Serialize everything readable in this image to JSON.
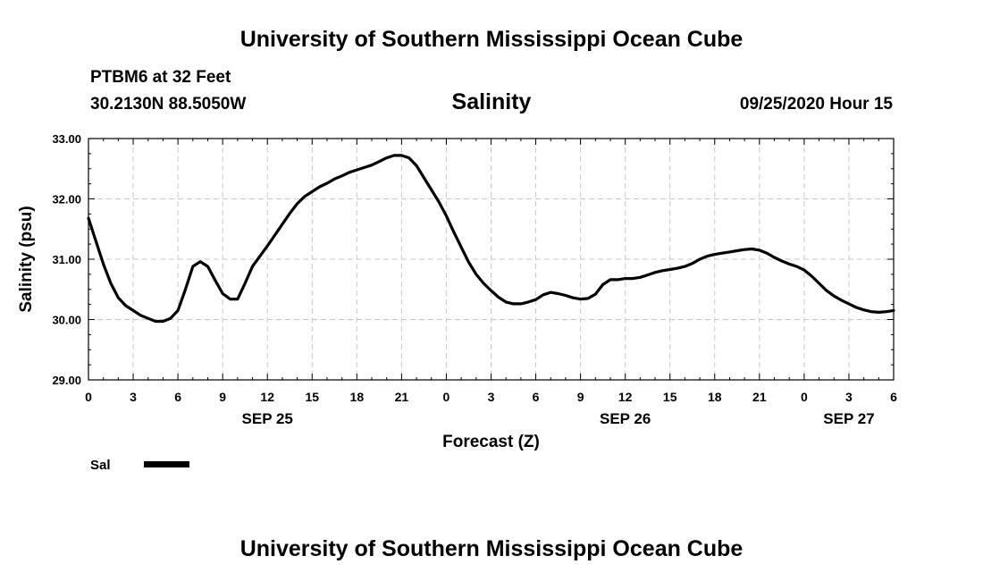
{
  "header": {
    "title": "University of Southern Mississippi Ocean Cube",
    "station": "PTBM6 at 32 Feet",
    "coords": "30.2130N 88.5050W",
    "variable": "Salinity",
    "datetime": "09/25/2020 Hour 15"
  },
  "footer": {
    "title": "University of Southern Mississippi Ocean Cube"
  },
  "chart_data": {
    "type": "line",
    "title": "Salinity",
    "xlabel": "Forecast (Z)",
    "ylabel": "Salinity (psu)",
    "xlim": [
      0,
      54
    ],
    "ylim": [
      29.0,
      33.0
    ],
    "grid": true,
    "x_tick_labels": [
      "0",
      "3",
      "6",
      "9",
      "12",
      "15",
      "18",
      "21",
      "0",
      "3",
      "6",
      "9",
      "12",
      "15",
      "18",
      "21",
      "0",
      "3",
      "6"
    ],
    "y_tick_values": [
      29.0,
      30.0,
      31.0,
      32.0,
      33.0
    ],
    "y_tick_labels": [
      "29.00",
      "30.00",
      "31.00",
      "32.00",
      "33.00"
    ],
    "date_labels": [
      {
        "label": "SEP 25",
        "x": 12
      },
      {
        "label": "SEP 26",
        "x": 36
      },
      {
        "label": "SEP 27",
        "x": 51
      }
    ],
    "legend": {
      "position": "bottom-left",
      "label": "Sal"
    },
    "series": [
      {
        "name": "Sal",
        "color": "#000000",
        "x": [
          0,
          0.5,
          1,
          1.5,
          2,
          2.5,
          3,
          3.5,
          4,
          4.5,
          5,
          5.5,
          6,
          6.5,
          7,
          7.5,
          8,
          8.5,
          9,
          9.5,
          10,
          10.5,
          11,
          11.5,
          12,
          12.5,
          13,
          13.5,
          14,
          14.5,
          15,
          15.5,
          16,
          16.5,
          17,
          17.5,
          18,
          18.5,
          19,
          19.5,
          20,
          20.5,
          21,
          21.5,
          22,
          22.5,
          23,
          23.5,
          24,
          24.5,
          25,
          25.5,
          26,
          26.5,
          27,
          27.5,
          28,
          28.5,
          29,
          29.5,
          30,
          30.5,
          31,
          31.5,
          32,
          32.5,
          33,
          33.5,
          34,
          34.5,
          35,
          35.5,
          36,
          36.5,
          37,
          37.5,
          38,
          38.5,
          39,
          39.5,
          40,
          40.5,
          41,
          41.5,
          42,
          42.5,
          43,
          43.5,
          44,
          44.5,
          45,
          45.5,
          46,
          46.5,
          47,
          47.5,
          48,
          48.5,
          49,
          49.5,
          50,
          50.5,
          51,
          51.5,
          52,
          52.5,
          53,
          53.5,
          54
        ],
        "values": [
          31.68,
          31.3,
          30.92,
          30.6,
          30.36,
          30.23,
          30.15,
          30.07,
          30.02,
          29.97,
          29.97,
          30.02,
          30.15,
          30.5,
          30.88,
          30.96,
          30.88,
          30.65,
          30.43,
          30.34,
          30.34,
          30.6,
          30.88,
          31.05,
          31.22,
          31.4,
          31.58,
          31.76,
          31.92,
          32.04,
          32.12,
          32.2,
          32.26,
          32.33,
          32.38,
          32.44,
          32.48,
          32.52,
          32.56,
          32.62,
          32.68,
          32.72,
          32.72,
          32.68,
          32.55,
          32.35,
          32.15,
          31.95,
          31.72,
          31.45,
          31.2,
          30.95,
          30.75,
          30.6,
          30.48,
          30.37,
          30.29,
          30.26,
          30.26,
          30.29,
          30.33,
          30.41,
          30.45,
          30.43,
          30.4,
          30.36,
          30.34,
          30.35,
          30.42,
          30.58,
          30.66,
          30.66,
          30.68,
          30.68,
          30.7,
          30.74,
          30.78,
          30.81,
          30.83,
          30.85,
          30.88,
          30.93,
          31.0,
          31.05,
          31.08,
          31.1,
          31.12,
          31.14,
          31.16,
          31.17,
          31.15,
          31.1,
          31.03,
          30.97,
          30.92,
          30.88,
          30.82,
          30.72,
          30.6,
          30.48,
          30.39,
          30.32,
          30.26,
          30.2,
          30.16,
          30.13,
          30.12,
          30.13,
          30.15
        ]
      }
    ]
  }
}
